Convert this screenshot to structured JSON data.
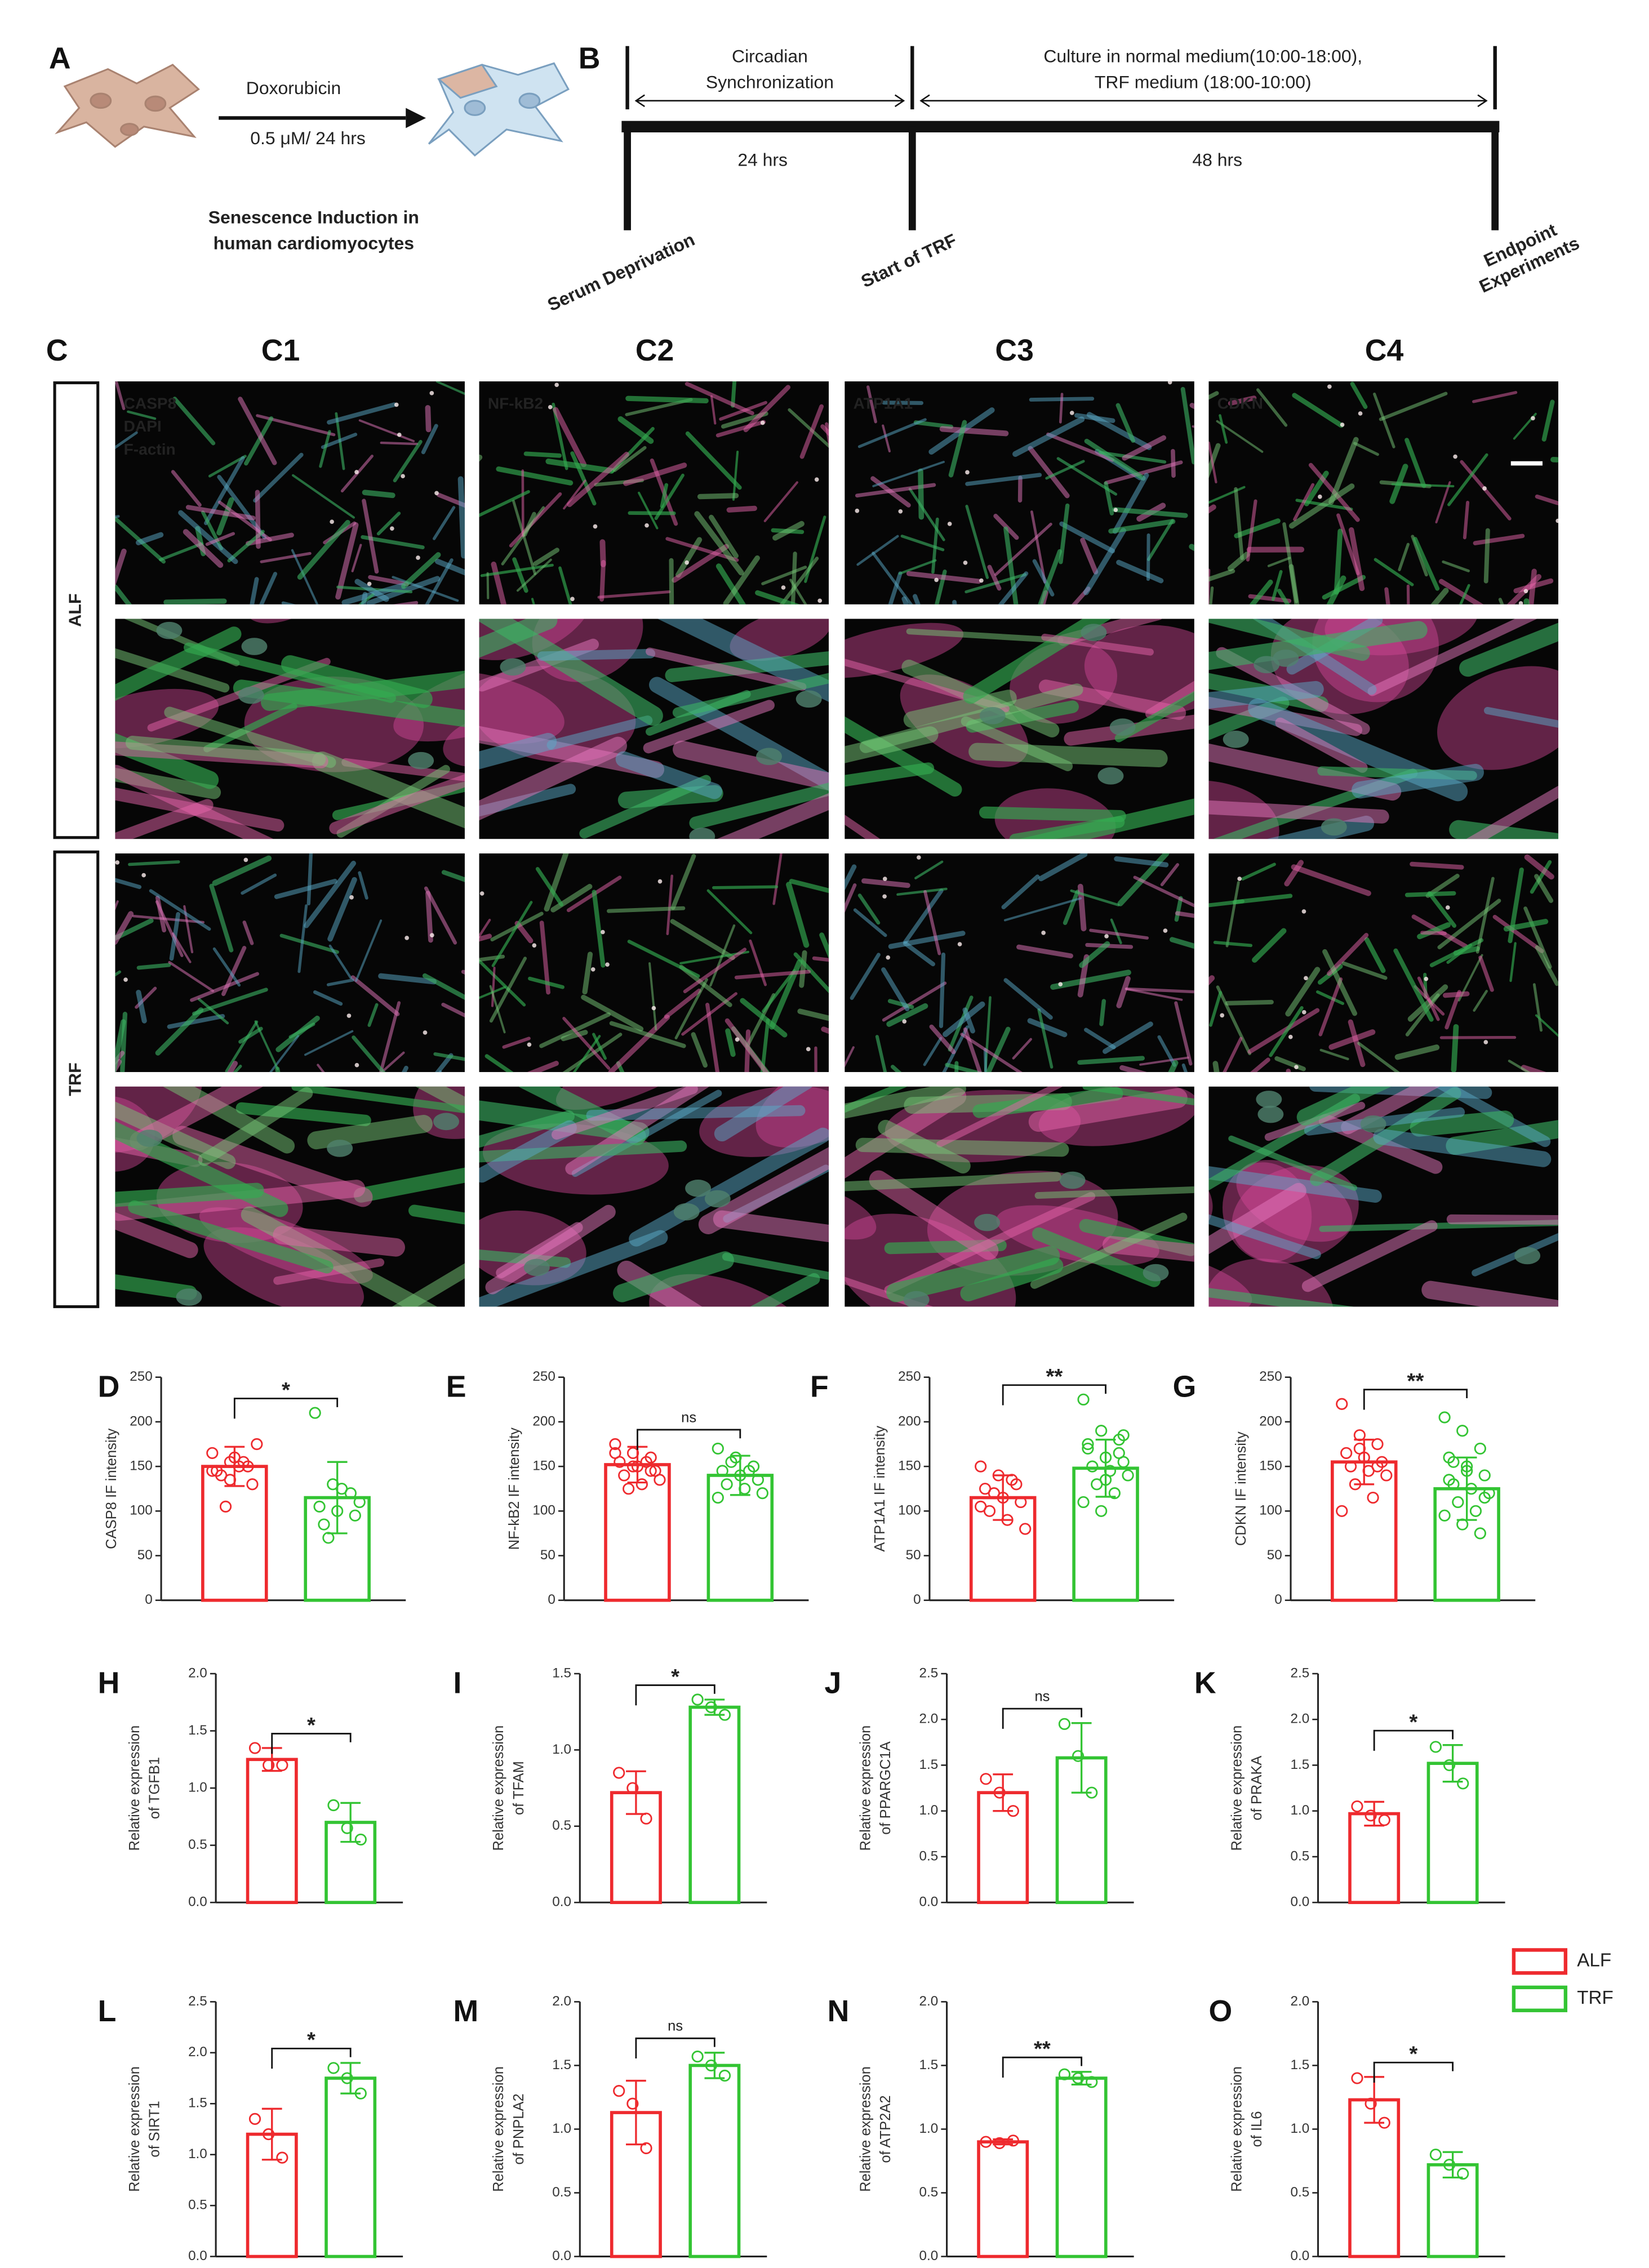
{
  "schematic": {
    "panel_a": {
      "letter": "A",
      "drug": "Doxorubicin",
      "dose": "0.5 μM/ 24 hrs",
      "caption": [
        "Senescence Induction in",
        "human cardiomyocytes"
      ]
    },
    "panel_b": {
      "letter": "B",
      "phase1": [
        "Circadian",
        "Synchronization"
      ],
      "phase2": [
        "Culture in normal medium(10:00-18:00),",
        "TRF medium (18:00-10:00)"
      ],
      "duration1": "24 hrs",
      "duration2": "48 hrs",
      "events": [
        [
          "Serum Deprivation"
        ],
        [
          "Start of TRF"
        ],
        [
          "Endpoint",
          "Experiments"
        ]
      ]
    }
  },
  "microscopy": {
    "letter": "C",
    "columns": [
      "C1",
      "C2",
      "C3",
      "C4"
    ],
    "rows": [
      "ALF",
      "TRF"
    ],
    "stains": [
      [
        {
          "name": "CASP8",
          "color": "#f2b3cb"
        },
        {
          "name": "DAPI",
          "color": "#4a5bd0"
        },
        {
          "name": "F-actin",
          "color": "#3f9a4c"
        }
      ],
      [
        {
          "name": "NF-kB2",
          "color": "#f2b3cb"
        }
      ],
      [
        {
          "name": "ATP1A1",
          "color": "#f2b3cb"
        }
      ],
      [
        {
          "name": "CDKN",
          "color": "#f2b3cb"
        }
      ]
    ]
  },
  "legend": {
    "series": [
      {
        "name": "ALF",
        "color": "#ee2a2e"
      },
      {
        "name": "TRF",
        "color": "#33c433"
      }
    ]
  },
  "chart_data": [
    {
      "type": "bar",
      "letter": "D",
      "ylabel": [
        "CASP8 IF intensity"
      ],
      "ylim": [
        0,
        250
      ],
      "yticks": [
        0,
        50,
        100,
        150,
        200,
        250
      ],
      "values": [
        150,
        115
      ],
      "errors": [
        22,
        40
      ],
      "points": [
        [
          165,
          155,
          150,
          145,
          160,
          130,
          140,
          150,
          175,
          105,
          155,
          145,
          135
        ],
        [
          210,
          130,
          120,
          105,
          100,
          95,
          85,
          125,
          110,
          70
        ]
      ],
      "significance": "*"
    },
    {
      "type": "bar",
      "letter": "E",
      "ylabel": [
        "NF-kB2 IF intensity"
      ],
      "ylim": [
        0,
        250
      ],
      "yticks": [
        0,
        50,
        100,
        150,
        200,
        250
      ],
      "values": [
        152,
        140
      ],
      "errors": [
        20,
        22
      ],
      "points": [
        [
          175,
          165,
          160,
          155,
          150,
          145,
          140,
          130,
          135,
          125,
          155,
          165,
          150,
          145
        ],
        [
          170,
          160,
          150,
          145,
          140,
          135,
          130,
          125,
          120,
          155,
          145,
          115
        ]
      ],
      "significance": "ns"
    },
    {
      "type": "bar",
      "letter": "F",
      "ylabel": [
        "ATP1A1 IF intensity"
      ],
      "ylim": [
        0,
        250
      ],
      "yticks": [
        0,
        50,
        100,
        150,
        200,
        250
      ],
      "values": [
        115,
        148
      ],
      "errors": [
        25,
        32
      ],
      "points": [
        [
          150,
          140,
          130,
          125,
          115,
          110,
          100,
          90,
          80,
          120,
          135,
          105
        ],
        [
          225,
          190,
          180,
          170,
          160,
          155,
          150,
          145,
          140,
          130,
          120,
          110,
          100,
          165,
          175,
          135,
          185
        ]
      ],
      "significance": "**"
    },
    {
      "type": "bar",
      "letter": "G",
      "ylabel": [
        "CDKN IF intensity"
      ],
      "ylim": [
        0,
        250
      ],
      "yticks": [
        0,
        50,
        100,
        150,
        200,
        250
      ],
      "values": [
        155,
        125
      ],
      "errors": [
        25,
        35
      ],
      "points": [
        [
          220,
          185,
          175,
          165,
          160,
          155,
          150,
          145,
          140,
          130,
          115,
          100,
          170,
          150
        ],
        [
          205,
          190,
          170,
          160,
          150,
          140,
          130,
          125,
          120,
          110,
          100,
          95,
          85,
          75,
          135,
          145,
          115,
          155
        ]
      ],
      "significance": "**"
    },
    {
      "type": "bar",
      "letter": "H",
      "ylabel": [
        "Relative expression",
        "of TGFB1"
      ],
      "ylim": [
        0,
        2
      ],
      "yticks": [
        {
          "value": 0,
          "label": "0.0"
        },
        0.5,
        {
          "value": 1,
          "label": "1.0"
        },
        1.5,
        {
          "value": 2,
          "label": "2.0"
        }
      ],
      "values": [
        1.25,
        0.7
      ],
      "errors": [
        0.1,
        0.17
      ],
      "points": [
        [
          1.35,
          1.2,
          1.2
        ],
        [
          0.85,
          0.65,
          0.55
        ]
      ],
      "significance": "*"
    },
    {
      "type": "bar",
      "letter": "I",
      "ylabel": [
        "Relative expression",
        "of TFAM"
      ],
      "ylim": [
        0,
        1.5
      ],
      "yticks": [
        {
          "value": 0,
          "label": "0.0"
        },
        0.5,
        {
          "value": 1,
          "label": "1.0"
        },
        1.5
      ],
      "values": [
        0.72,
        1.28
      ],
      "errors": [
        0.14,
        0.05
      ],
      "points": [
        [
          0.85,
          0.75,
          0.55
        ],
        [
          1.33,
          1.28,
          1.23
        ]
      ],
      "significance": "*"
    },
    {
      "type": "bar",
      "letter": "J",
      "ylabel": [
        "Relative expression",
        "of PPARGC1A"
      ],
      "ylim": [
        0,
        2.5
      ],
      "yticks": [
        {
          "value": 0,
          "label": "0.0"
        },
        0.5,
        {
          "value": 1,
          "label": "1.0"
        },
        1.5,
        {
          "value": 2,
          "label": "2.0"
        },
        2.5
      ],
      "values": [
        1.2,
        1.58
      ],
      "errors": [
        0.2,
        0.38
      ],
      "points": [
        [
          1.35,
          1.2,
          1.0
        ],
        [
          1.95,
          1.6,
          1.2
        ]
      ],
      "significance": "ns"
    },
    {
      "type": "bar",
      "letter": "K",
      "ylabel": [
        "Relative expression",
        "of PRAKA"
      ],
      "ylim": [
        0,
        2.5
      ],
      "yticks": [
        {
          "value": 0,
          "label": "0.0"
        },
        0.5,
        {
          "value": 1,
          "label": "1.0"
        },
        1.5,
        {
          "value": 2,
          "label": "2.0"
        },
        2.5
      ],
      "values": [
        0.97,
        1.52
      ],
      "errors": [
        0.13,
        0.2
      ],
      "points": [
        [
          1.05,
          0.95,
          0.9
        ],
        [
          1.7,
          1.5,
          1.3
        ]
      ],
      "significance": "*"
    },
    {
      "type": "bar",
      "letter": "L",
      "ylabel": [
        "Relative expression",
        "of SIRT1"
      ],
      "ylim": [
        0,
        2.5
      ],
      "yticks": [
        {
          "value": 0,
          "label": "0.0"
        },
        0.5,
        {
          "value": 1,
          "label": "1.0"
        },
        1.5,
        {
          "value": 2,
          "label": "2.0"
        },
        2.5
      ],
      "values": [
        1.2,
        1.75
      ],
      "errors": [
        0.25,
        0.15
      ],
      "points": [
        [
          1.35,
          1.2,
          0.97
        ],
        [
          1.85,
          1.75,
          1.6
        ]
      ],
      "significance": "*"
    },
    {
      "type": "bar",
      "letter": "M",
      "ylabel": [
        "Relative expression",
        "of PNPLA2"
      ],
      "ylim": [
        0,
        2
      ],
      "yticks": [
        {
          "value": 0,
          "label": "0.0"
        },
        0.5,
        {
          "value": 1,
          "label": "1.0"
        },
        1.5,
        {
          "value": 2,
          "label": "2.0"
        }
      ],
      "values": [
        1.13,
        1.5
      ],
      "errors": [
        0.25,
        0.1
      ],
      "points": [
        [
          1.3,
          1.2,
          0.85
        ],
        [
          1.57,
          1.5,
          1.42
        ]
      ],
      "significance": "ns"
    },
    {
      "type": "bar",
      "letter": "N",
      "ylabel": [
        "Relative expression",
        "of ATP2A2"
      ],
      "ylim": [
        0,
        2
      ],
      "yticks": [
        {
          "value": 0,
          "label": "0.0"
        },
        0.5,
        {
          "value": 1,
          "label": "1.0"
        },
        1.5,
        {
          "value": 2,
          "label": "2.0"
        }
      ],
      "values": [
        0.9,
        1.4
      ],
      "errors": [
        0.02,
        0.05
      ],
      "points": [
        [
          0.9,
          0.89,
          0.91
        ],
        [
          1.43,
          1.4,
          1.37
        ]
      ],
      "significance": "**"
    },
    {
      "type": "bar",
      "letter": "O",
      "ylabel": [
        "Relative expression",
        "of IL6"
      ],
      "ylim": [
        0,
        2
      ],
      "yticks": [
        {
          "value": 0,
          "label": "0.0"
        },
        0.5,
        {
          "value": 1,
          "label": "1.0"
        },
        1.5,
        {
          "value": 2,
          "label": "2.0"
        }
      ],
      "values": [
        1.23,
        0.72
      ],
      "errors": [
        0.18,
        0.1
      ],
      "points": [
        [
          1.4,
          1.2,
          1.05
        ],
        [
          0.8,
          0.72,
          0.65
        ]
      ],
      "significance": "*"
    }
  ]
}
